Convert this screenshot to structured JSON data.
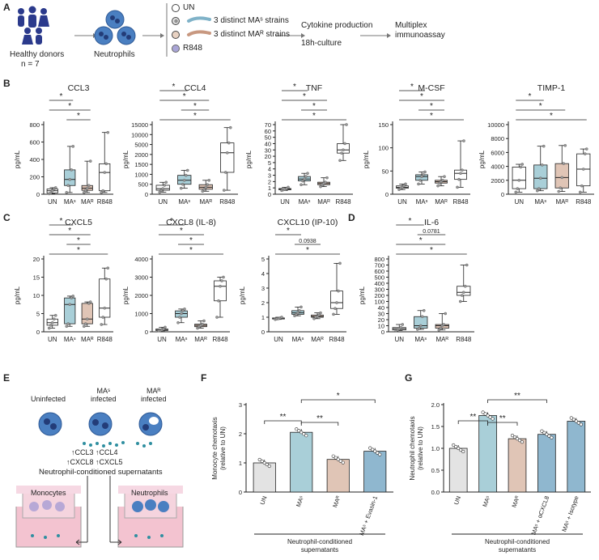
{
  "panel_letters": [
    "A",
    "B",
    "C",
    "D",
    "E",
    "F",
    "G"
  ],
  "schema": {
    "donor_label": "Healthy donors",
    "donor_n": "n = 7",
    "neutrophils_label": "Neutrophils",
    "legend": [
      {
        "label": "UN",
        "kind": "circle-empty"
      },
      {
        "label": "3 distinct MAˢ strains",
        "kind": "bacteria-blue"
      },
      {
        "label": "3 distinct MAᴿ strains",
        "kind": "bacteria-brown"
      },
      {
        "label": "R848",
        "kind": "circle-purple"
      }
    ],
    "step1": "Cytokine production",
    "step1b": "18h-culture",
    "step2": "Multiplex",
    "step2b": "immunoassay"
  },
  "colors": {
    "un": "#ffffff",
    "mas": "#a9cfd8",
    "mar": "#e0c5b6",
    "r848": "#ffffff",
    "bar_un": "#e3e3e3",
    "bar_hatch": "#8fb7cf"
  },
  "chart_data": [
    {
      "type": "box",
      "title": "CCL3",
      "ylabel": "pg/mL",
      "categories": [
        "UN",
        "MAˢ",
        "MAᴿ",
        "R848"
      ],
      "yticks": [
        "0",
        "200",
        "400",
        "600",
        "800"
      ],
      "ylim": [
        0,
        800
      ],
      "boxes": [
        {
          "min": 5,
          "q1": 15,
          "med": 40,
          "q3": 60,
          "max": 75
        },
        {
          "min": 20,
          "q1": 100,
          "med": 170,
          "q3": 280,
          "max": 550
        },
        {
          "min": 20,
          "q1": 45,
          "med": 70,
          "q3": 100,
          "max": 380
        },
        {
          "min": 20,
          "q1": 40,
          "med": 250,
          "q3": 350,
          "max": 710
        }
      ],
      "sig": [
        {
          "a": 0,
          "b": 1,
          "label": "*"
        },
        {
          "a": 0,
          "b": 2,
          "label": "*"
        },
        {
          "a": 1,
          "b": 2,
          "label": "*"
        }
      ]
    },
    {
      "type": "box",
      "title": "CCL4",
      "ylabel": "pg/mL",
      "categories": [
        "UN",
        "MAˢ",
        "MAᴿ",
        "R848"
      ],
      "yticks": [
        "0",
        "500",
        "1000",
        "1500",
        "2000",
        "5000",
        "10000",
        "15000"
      ],
      "ylim": [
        0,
        15000
      ],
      "boxes": [
        {
          "min": 100,
          "q1": 200,
          "med": 280,
          "q3": 450,
          "max": 600
        },
        {
          "min": 300,
          "q1": 500,
          "med": 700,
          "q3": 950,
          "max": 1200
        },
        {
          "min": 150,
          "q1": 250,
          "med": 350,
          "q3": 480,
          "max": 700
        },
        {
          "min": 200,
          "q1": 1100,
          "med": 2500,
          "q3": 5800,
          "max": 13500
        }
      ],
      "sig": [
        {
          "a": 0,
          "b": 1,
          "label": "*"
        },
        {
          "a": 0,
          "b": 2,
          "label": "*"
        },
        {
          "a": 1,
          "b": 2,
          "label": "*"
        },
        {
          "a": 0,
          "b": 3,
          "label": "*"
        }
      ]
    },
    {
      "type": "box",
      "title": "TNF",
      "ylabel": "pg/mL",
      "categories": [
        "UN",
        "MAˢ",
        "MAᴿ",
        "R848"
      ],
      "yticks": [
        "0",
        "1",
        "2",
        "3",
        "4",
        "5",
        "20",
        "30",
        "40",
        "50",
        "60",
        "70"
      ],
      "ylim": [
        0,
        70
      ],
      "boxes": [
        {
          "min": 0.6,
          "q1": 0.7,
          "med": 0.8,
          "q3": 0.9,
          "max": 1.1
        },
        {
          "min": 1.5,
          "q1": 2.1,
          "med": 2.4,
          "q3": 2.8,
          "max": 3.3
        },
        {
          "min": 1.2,
          "q1": 1.5,
          "med": 1.7,
          "q3": 1.9,
          "max": 2.6
        },
        {
          "min": 10,
          "q1": 25,
          "med": 30,
          "q3": 40,
          "max": 70
        }
      ],
      "sig": [
        {
          "a": 0,
          "b": 1,
          "label": "*"
        },
        {
          "a": 0,
          "b": 2,
          "label": "*"
        },
        {
          "a": 1,
          "b": 2,
          "label": "*"
        },
        {
          "a": 0,
          "b": 3,
          "label": "*"
        }
      ]
    },
    {
      "type": "box",
      "title": "M-CSF",
      "ylabel": "pg/mL",
      "categories": [
        "UN",
        "MAˢ",
        "MAᴿ",
        "R848"
      ],
      "yticks": [
        "0",
        "50",
        "100",
        "150"
      ],
      "ylim": [
        0,
        150
      ],
      "boxes": [
        {
          "min": 10,
          "q1": 13,
          "med": 15,
          "q3": 18,
          "max": 22
        },
        {
          "min": 22,
          "q1": 30,
          "med": 38,
          "q3": 42,
          "max": 48
        },
        {
          "min": 18,
          "q1": 24,
          "med": 27,
          "q3": 30,
          "max": 38
        },
        {
          "min": 15,
          "q1": 32,
          "med": 45,
          "q3": 52,
          "max": 115
        }
      ],
      "sig": [
        {
          "a": 0,
          "b": 1,
          "label": "*"
        },
        {
          "a": 0,
          "b": 2,
          "label": "*"
        },
        {
          "a": 1,
          "b": 2,
          "label": "*"
        },
        {
          "a": 0,
          "b": 3,
          "label": "*"
        }
      ]
    },
    {
      "type": "box",
      "title": "TIMP-1",
      "ylabel": "pg/mL",
      "categories": [
        "UN",
        "MAˢ",
        "MAᴿ",
        "R848"
      ],
      "yticks": [
        "0",
        "2000",
        "4000",
        "6000",
        "8000",
        "10000"
      ],
      "ylim": [
        0,
        10000
      ],
      "boxes": [
        {
          "min": 300,
          "q1": 800,
          "med": 2000,
          "q3": 3900,
          "max": 4300
        },
        {
          "min": 500,
          "q1": 800,
          "med": 2300,
          "q3": 4200,
          "max": 6900
        },
        {
          "min": 400,
          "q1": 900,
          "med": 2400,
          "q3": 4400,
          "max": 7000
        },
        {
          "min": 300,
          "q1": 1200,
          "med": 3600,
          "q3": 5800,
          "max": 6500
        }
      ],
      "sig": [
        {
          "a": 0,
          "b": 1,
          "label": "*"
        },
        {
          "a": 0,
          "b": 2,
          "label": "*"
        },
        {
          "a": 0,
          "b": 3,
          "label": "*"
        }
      ]
    },
    {
      "type": "box",
      "title": "CXCL5",
      "ylabel": "pg/mL",
      "categories": [
        "UN",
        "MAˢ",
        "MAᴿ",
        "R848"
      ],
      "yticks": [
        "0",
        "5",
        "10",
        "15",
        "20"
      ],
      "ylim": [
        0,
        20
      ],
      "boxes": [
        {
          "min": 1,
          "q1": 1.8,
          "med": 2.5,
          "q3": 3.5,
          "max": 4.5
        },
        {
          "min": 1.5,
          "q1": 2.2,
          "med": 7.5,
          "q3": 9.3,
          "max": 9.8
        },
        {
          "min": 1.5,
          "q1": 2.2,
          "med": 3.5,
          "q3": 7.8,
          "max": 8.2
        },
        {
          "min": 2,
          "q1": 4,
          "med": 6.5,
          "q3": 14.5,
          "max": 17.5
        }
      ],
      "sig": [
        {
          "a": 0,
          "b": 1,
          "label": "*"
        },
        {
          "a": 0,
          "b": 2,
          "label": "*"
        },
        {
          "a": 1,
          "b": 2,
          "label": "*"
        },
        {
          "a": 0,
          "b": 3,
          "label": "*"
        }
      ]
    },
    {
      "type": "box",
      "title": "CXCL8 (IL-8)",
      "ylabel": "pg/mL",
      "categories": [
        "UN",
        "MAˢ",
        "MAᴿ",
        "R848"
      ],
      "yticks": [
        "0",
        "1000",
        "2000",
        "3000",
        "4000"
      ],
      "ylim": [
        0,
        4000
      ],
      "boxes": [
        {
          "min": 50,
          "q1": 70,
          "med": 100,
          "q3": 150,
          "max": 250
        },
        {
          "min": 500,
          "q1": 800,
          "med": 1000,
          "q3": 1150,
          "max": 1250
        },
        {
          "min": 200,
          "q1": 280,
          "med": 350,
          "q3": 420,
          "max": 600
        },
        {
          "min": 800,
          "q1": 1700,
          "med": 2500,
          "q3": 2800,
          "max": 3000
        }
      ],
      "sig": [
        {
          "a": 0,
          "b": 1,
          "label": "*"
        },
        {
          "a": 0,
          "b": 2,
          "label": "*"
        },
        {
          "a": 1,
          "b": 2,
          "label": "*"
        },
        {
          "a": 0,
          "b": 3,
          "label": "*"
        }
      ]
    },
    {
      "type": "box",
      "title": "CXCL10 (IP-10)",
      "ylabel": "pg/mL",
      "categories": [
        "UN",
        "MAˢ",
        "MAᴿ",
        "R848"
      ],
      "yticks": [
        "0",
        "1",
        "2",
        "3",
        "4",
        "5"
      ],
      "ylim": [
        0,
        5
      ],
      "boxes": [
        {
          "min": 0.85,
          "q1": 0.88,
          "med": 0.9,
          "q3": 0.95,
          "max": 1.0
        },
        {
          "min": 1.1,
          "q1": 1.2,
          "med": 1.3,
          "q3": 1.45,
          "max": 1.7
        },
        {
          "min": 0.9,
          "q1": 1.0,
          "med": 1.05,
          "q3": 1.15,
          "max": 1.3
        },
        {
          "min": 1.2,
          "q1": 1.6,
          "med": 2.0,
          "q3": 2.8,
          "max": 4.7
        }
      ],
      "sig": [
        {
          "a": 0,
          "b": 1,
          "label": "*"
        },
        {
          "a": 1,
          "b": 2,
          "label": "0.0938"
        },
        {
          "a": 0,
          "b": 3,
          "label": "*"
        }
      ]
    },
    {
      "type": "box",
      "title": "IL-6",
      "ylabel": "pg/mL",
      "categories": [
        "UN",
        "MAˢ",
        "MAᴿ",
        "R848"
      ],
      "yticks": [
        "0",
        "10",
        "20",
        "30",
        "40",
        "100",
        "200",
        "300",
        "400",
        "500",
        "600",
        "700",
        "800"
      ],
      "ylim": [
        0,
        800
      ],
      "boxes": [
        {
          "min": 2,
          "q1": 3,
          "med": 5,
          "q3": 7,
          "max": 12
        },
        {
          "min": 4,
          "q1": 6,
          "med": 10,
          "q3": 25,
          "max": 35
        },
        {
          "min": 3,
          "q1": 6,
          "med": 10,
          "q3": 12,
          "max": 30
        },
        {
          "min": 100,
          "q1": 200,
          "med": 250,
          "q3": 350,
          "max": 700
        }
      ],
      "sig": [
        {
          "a": 0,
          "b": 1,
          "label": "*"
        },
        {
          "a": 1,
          "b": 2,
          "label": "0.0781"
        },
        {
          "a": 0,
          "b": 2,
          "label": "*"
        },
        {
          "a": 0,
          "b": 3,
          "label": "*"
        }
      ]
    },
    {
      "type": "bar",
      "panel": "F",
      "ylabel": "Monocyte chemotaxis\n(relative to UN)",
      "xlabel": "Neutrophil-conditioned\nsupernatants",
      "yticks": [
        "0",
        "1",
        "2",
        "3"
      ],
      "ylim": [
        0,
        3
      ],
      "categories": [
        "UN",
        "MAˢ",
        "MAᴿ",
        "MAˢ + Evasin-1"
      ],
      "values": [
        1.0,
        2.05,
        1.12,
        1.4
      ],
      "sig": [
        {
          "a": 0,
          "b": 1,
          "label": "**"
        },
        {
          "a": 1,
          "b": 2,
          "label": "**"
        },
        {
          "a": 1,
          "b": 3,
          "label": "*"
        }
      ]
    },
    {
      "type": "bar",
      "panel": "G",
      "ylabel": "Neutrophil chemotaxis\n(relative to UN)",
      "xlabel": "Neutrophil-conditioned\nsupernatants",
      "yticks": [
        "0.0",
        "0.5",
        "1.0",
        "1.5",
        "2.0"
      ],
      "ylim": [
        0,
        2
      ],
      "categories": [
        "UN",
        "MAˢ",
        "MAᴿ",
        "MAˢ + αCXCL8",
        "MAˢ + Isotype"
      ],
      "values": [
        1.0,
        1.75,
        1.22,
        1.32,
        1.62
      ],
      "sig": [
        {
          "a": 0,
          "b": 1,
          "label": "**"
        },
        {
          "a": 1,
          "b": 2,
          "label": "**"
        },
        {
          "a": 1,
          "b": 3,
          "label": "**"
        }
      ]
    }
  ],
  "panel_e": {
    "uninfected": "Uninfected",
    "mas_infected": "MAˢ\ninfected",
    "mar_infected": "MAᴿ\ninfected",
    "cytokines_line1": "↑CCL3 ↑CCL4",
    "cytokines_line2": "↑CXCL8 ↑CXCL5",
    "supernatants": "Neutrophil-conditioned supernatants",
    "well1": "Monocytes",
    "well2": "Neutrophils"
  }
}
